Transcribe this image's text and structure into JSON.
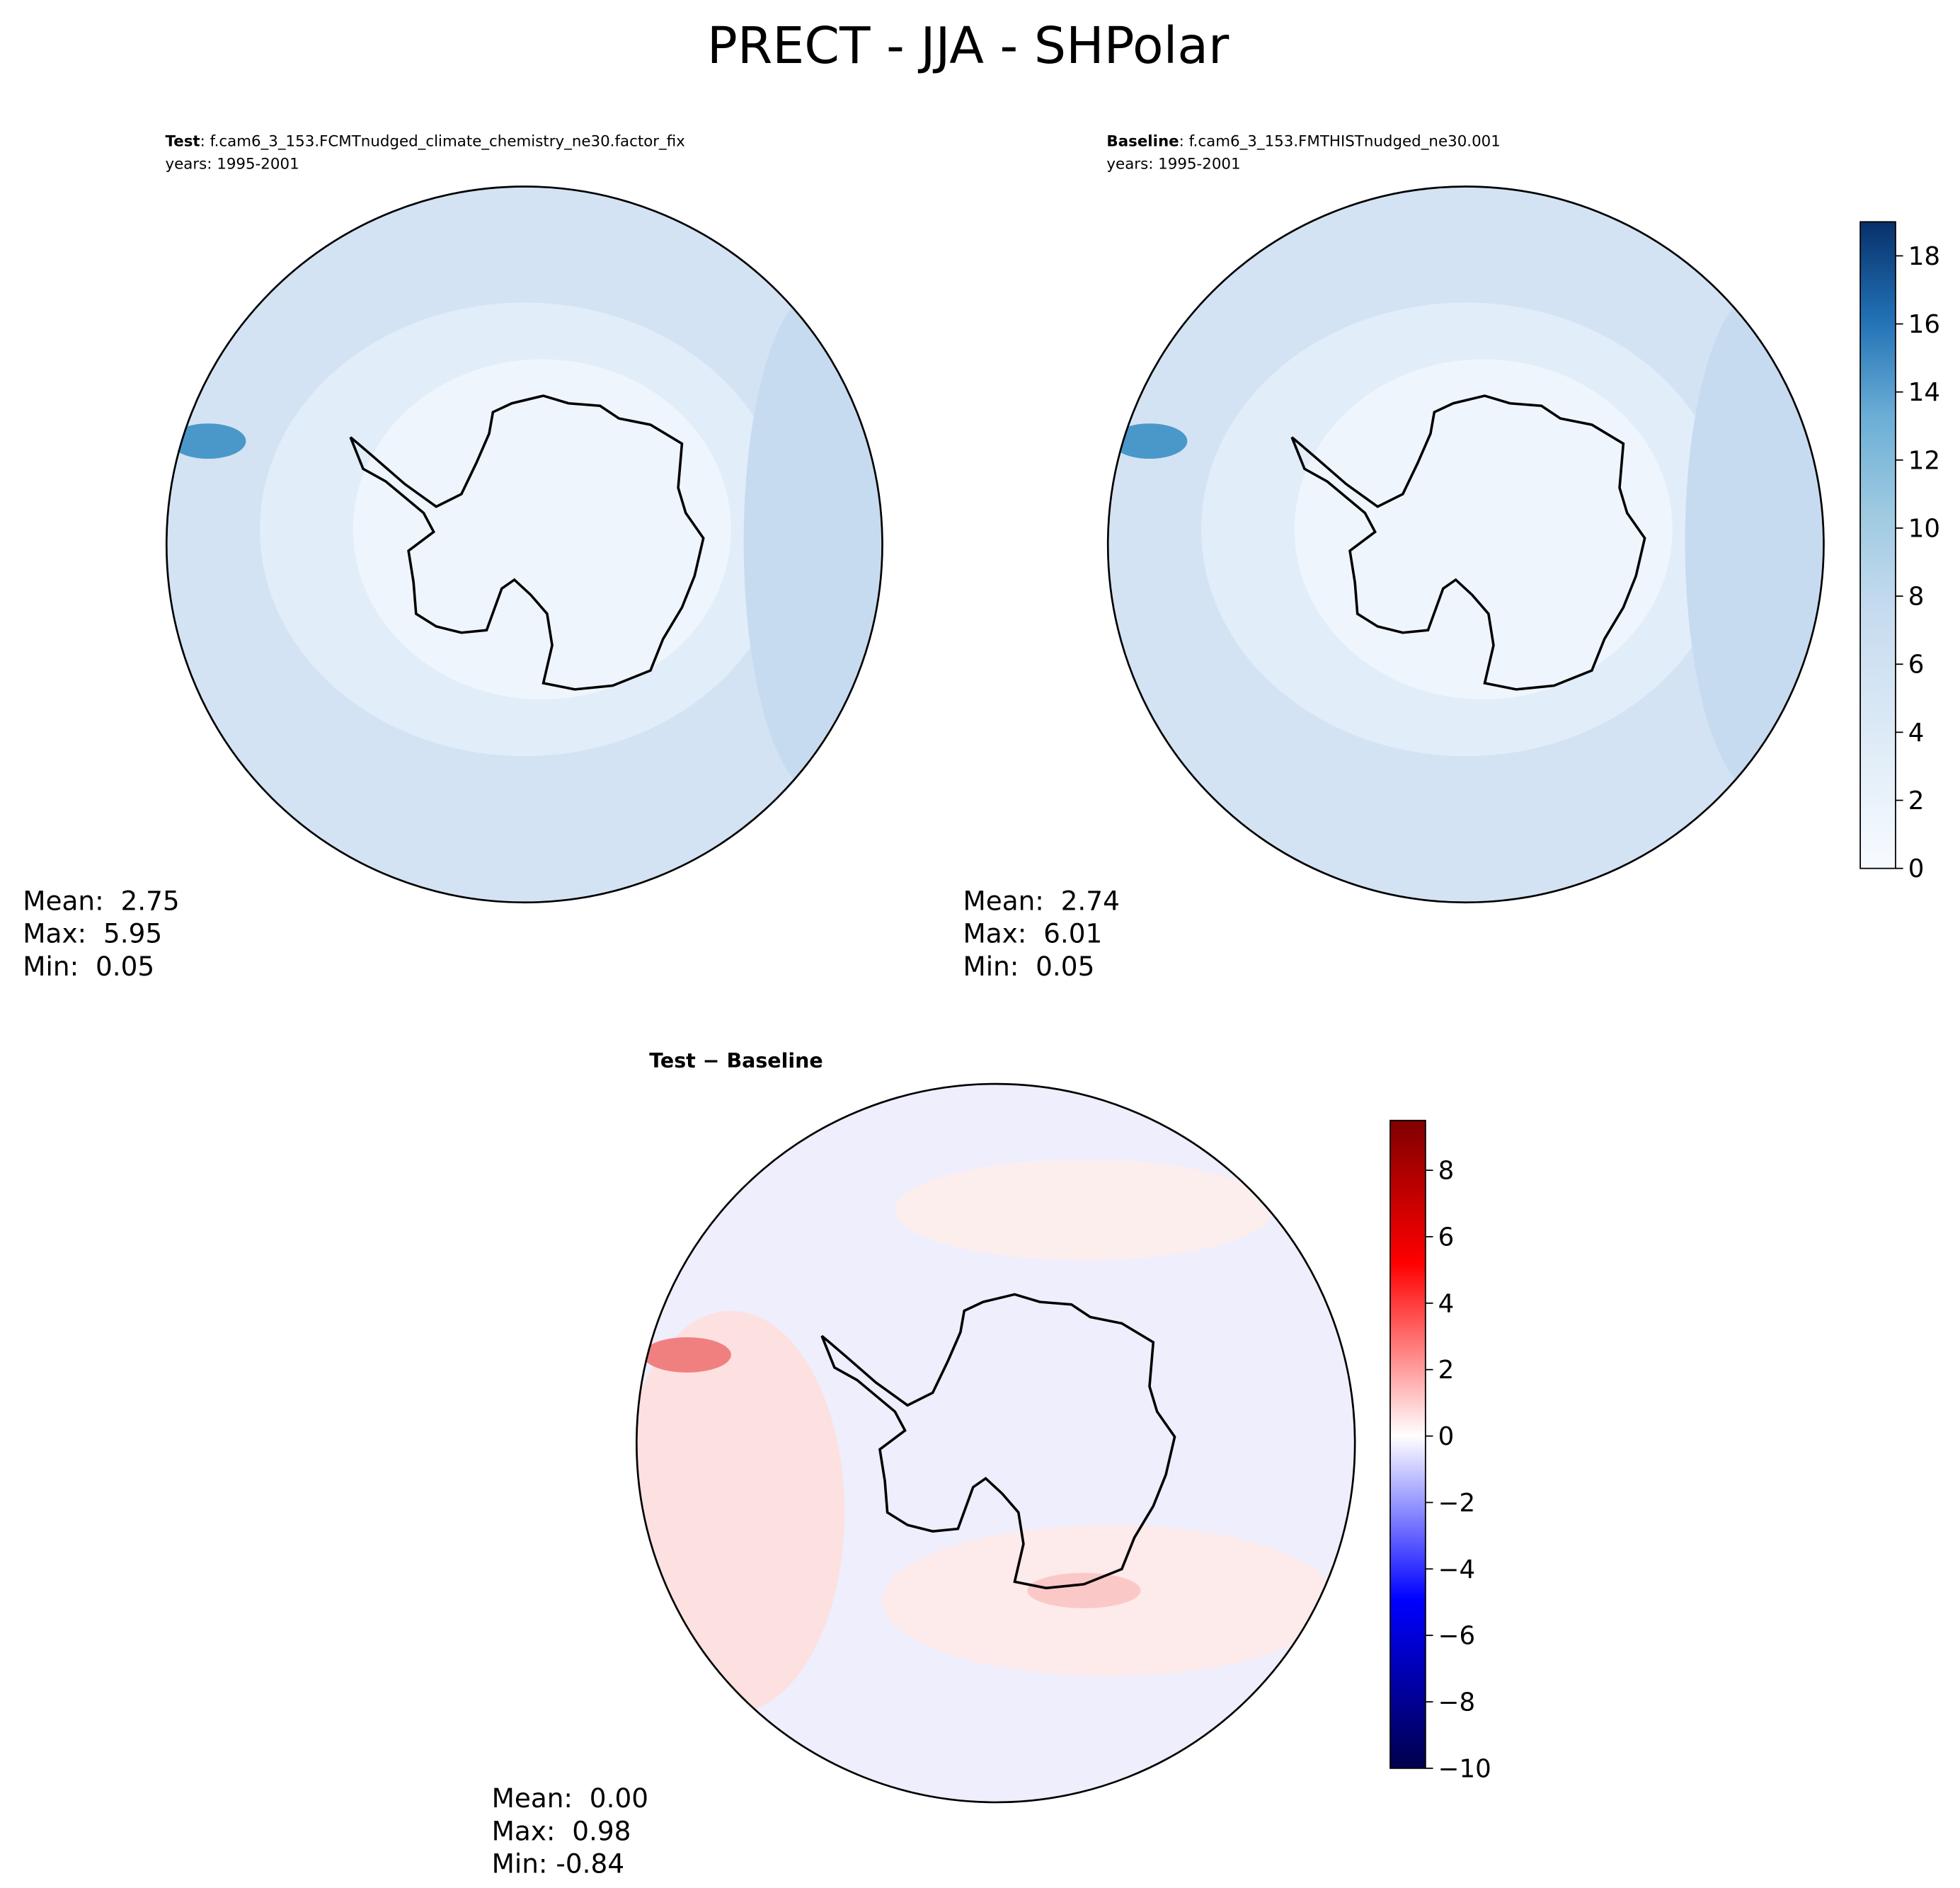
{
  "title": "PRECT - JJA - SHPolar",
  "panels": [
    {
      "label_bold": "Test",
      "label": ": f.cam6_3_153.FCMTnudged_climate_chemistry_ne30.factor_fix",
      "years": "years: 1995-2001",
      "stats": [
        "Mean:  2.75",
        "Max:  5.95",
        "Min:  0.05"
      ]
    },
    {
      "label_bold": "Baseline",
      "label": ": f.cam6_3_153.FMTHISTnudged_ne30.001",
      "years": "years: 1995-2001",
      "stats": [
        "Mean:  2.74",
        "Max:  6.01",
        "Min:  0.05"
      ]
    }
  ],
  "difference": {
    "label": "Test − Baseline",
    "stats": [
      "Mean:  0.00",
      "Max:  0.98",
      "Min: -0.84"
    ]
  },
  "colorbars": [
    {
      "lim": [
        0,
        19
      ],
      "ticks": [
        0,
        2,
        4,
        6,
        8,
        10,
        12,
        14,
        16,
        18
      ]
    },
    {
      "lim": [
        -10,
        9.5
      ],
      "ticks": [
        {
          "value": -10,
          "label": "−10"
        },
        {
          "value": -8,
          "label": "−8"
        },
        {
          "value": -6,
          "label": "−6"
        },
        {
          "value": -4,
          "label": "−4"
        },
        {
          "value": -2,
          "label": "−2"
        },
        0,
        2,
        4,
        6,
        8
      ]
    }
  ]
}
